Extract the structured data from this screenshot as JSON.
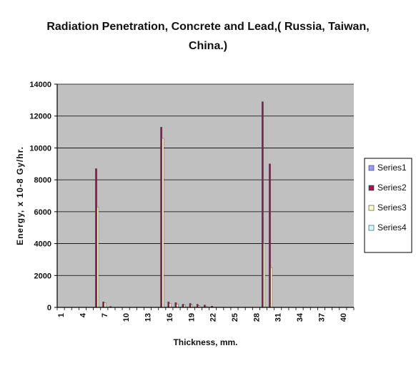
{
  "chart_data": {
    "type": "bar",
    "title_line1": "Radiation Penetration, Concrete and Lead,( Russia, Taiwan,",
    "title_line2": "China.)",
    "xlabel": "Thickness, mm.",
    "ylabel": "Energy, x 10-8 Gy/hr.",
    "ylim": [
      0,
      14000
    ],
    "yticks": [
      0,
      2000,
      4000,
      6000,
      8000,
      10000,
      12000,
      14000
    ],
    "xtick_labels": [
      "1",
      "4",
      "7",
      "10",
      "13",
      "16",
      "19",
      "22",
      "25",
      "28",
      "31",
      "34",
      "37",
      "40"
    ],
    "categories": [
      1,
      2,
      3,
      4,
      5,
      6,
      7,
      8,
      9,
      10,
      11,
      12,
      13,
      14,
      15,
      16,
      17,
      18,
      19,
      20,
      21,
      22,
      23,
      24,
      25,
      26,
      27,
      28,
      29,
      30,
      31,
      32,
      33,
      34,
      35,
      36,
      37,
      38,
      39,
      40,
      41
    ],
    "grid": true,
    "legend_position": "right",
    "series": [
      {
        "name": "Series1",
        "color": "#9999ff",
        "values": [
          0,
          0,
          0,
          0,
          0,
          0,
          0,
          0,
          0,
          0,
          0,
          0,
          0,
          0,
          0,
          0,
          0,
          0,
          0,
          0,
          0,
          0,
          0,
          0,
          0,
          0,
          0,
          0,
          0,
          0,
          0,
          0,
          0,
          0,
          0,
          0,
          0,
          0,
          0,
          0,
          0
        ]
      },
      {
        "name": "Series2",
        "color": "#8b2252",
        "values": [
          0,
          0,
          0,
          0,
          0,
          8700,
          350,
          60,
          0,
          0,
          0,
          0,
          0,
          0,
          11300,
          350,
          300,
          200,
          250,
          200,
          150,
          80,
          0,
          0,
          0,
          0,
          0,
          0,
          12900,
          9000,
          0,
          0,
          0,
          0,
          0,
          0,
          0,
          0,
          0,
          0,
          0
        ]
      },
      {
        "name": "Series3",
        "color": "#ffffcc",
        "values": [
          0,
          0,
          0,
          0,
          0,
          6300,
          300,
          0,
          0,
          0,
          0,
          0,
          0,
          0,
          10600,
          250,
          200,
          150,
          150,
          100,
          80,
          0,
          0,
          0,
          0,
          0,
          0,
          0,
          4000,
          2500,
          0,
          0,
          0,
          0,
          0,
          0,
          0,
          0,
          0,
          0,
          0
        ]
      },
      {
        "name": "Series4",
        "color": "#ccffff",
        "values": [
          0,
          0,
          0,
          0,
          0,
          0,
          0,
          0,
          0,
          0,
          0,
          0,
          0,
          0,
          0,
          0,
          0,
          0,
          0,
          0,
          0,
          0,
          0,
          0,
          0,
          0,
          0,
          0,
          0,
          0,
          0,
          0,
          0,
          0,
          0,
          0,
          0,
          0,
          0,
          0,
          0
        ]
      }
    ]
  }
}
